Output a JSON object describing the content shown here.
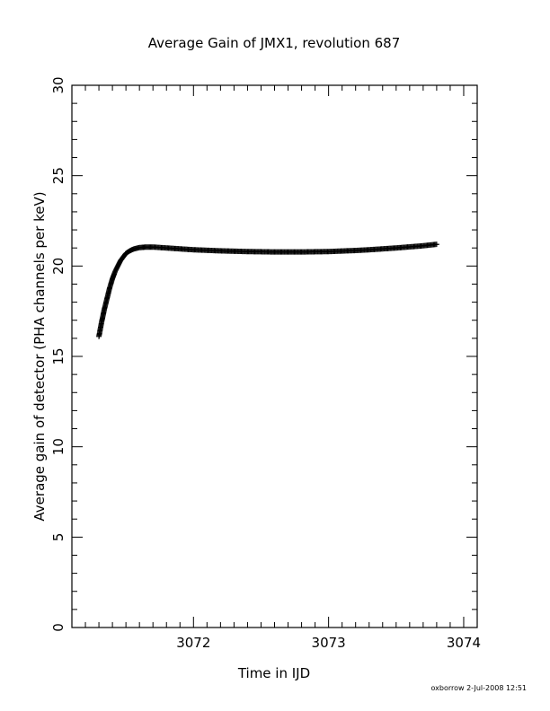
{
  "chart_data": {
    "type": "scatter",
    "title": "Average Gain of JMX1, revolution 687",
    "xlabel": "Time in IJD",
    "ylabel": "Average gain of detector (PHA channels per keV)",
    "xlim": [
      3071.1,
      3074.1
    ],
    "ylim": [
      0,
      30
    ],
    "x_ticks": [
      3072,
      3073,
      3074
    ],
    "x_tick_labels": [
      "3072",
      "3073",
      "3074"
    ],
    "y_ticks": [
      0,
      5,
      10,
      15,
      20,
      25,
      30
    ],
    "y_tick_labels": [
      "0",
      "5",
      "10",
      "15",
      "20",
      "25",
      "30"
    ],
    "x_minor_step": 0.1,
    "y_minor_step": 1,
    "grid": false,
    "marker": "plus",
    "series": [
      {
        "x": [
          3071.3,
          3071.32,
          3071.34,
          3071.36,
          3071.38,
          3071.4,
          3071.42,
          3071.44,
          3071.46,
          3071.48,
          3071.5,
          3071.53,
          3071.56,
          3071.6,
          3071.65,
          3071.7,
          3071.8,
          3071.9,
          3072.0,
          3072.1,
          3072.2,
          3072.3,
          3072.4,
          3072.5,
          3072.6,
          3072.7,
          3072.8,
          3072.9,
          3073.0,
          3073.1,
          3073.2,
          3073.3,
          3073.4,
          3073.5,
          3073.6,
          3073.7,
          3073.8
        ],
        "y": [
          16.1,
          16.9,
          17.6,
          18.2,
          18.8,
          19.3,
          19.7,
          20.0,
          20.3,
          20.5,
          20.7,
          20.85,
          20.95,
          21.02,
          21.05,
          21.05,
          21.0,
          20.95,
          20.9,
          20.87,
          20.84,
          20.82,
          20.8,
          20.79,
          20.78,
          20.78,
          20.78,
          20.79,
          20.8,
          20.83,
          20.86,
          20.9,
          20.95,
          21.0,
          21.06,
          21.12,
          21.2
        ]
      }
    ]
  },
  "footer": {
    "stamp": "oxborrow  2-Jul-2008 12:51"
  }
}
